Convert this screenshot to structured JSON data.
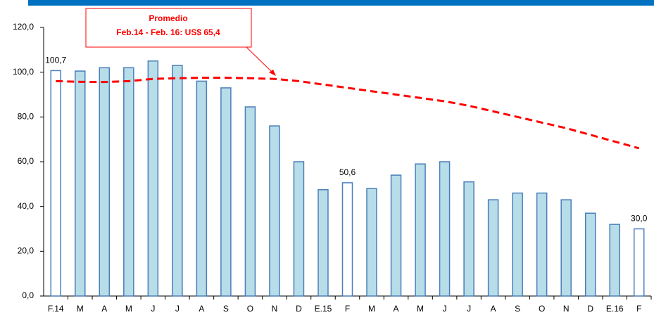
{
  "chart_data": {
    "type": "bar",
    "annotation": {
      "lines": [
        "Promedio",
        "Feb.14 - Feb. 16: US$ 65,4"
      ],
      "color": "#ff0000"
    },
    "categories": [
      "F.14",
      "M",
      "A",
      "M",
      "J",
      "J",
      "A",
      "S",
      "O",
      "N",
      "D",
      "E.15",
      "F",
      "M",
      "A",
      "M",
      "J",
      "J",
      "A",
      "S",
      "O",
      "N",
      "D",
      "E.16",
      "F"
    ],
    "series": [
      {
        "type": "bar",
        "edge_color": "#4a7ebb",
        "values": [
          100.7,
          100.5,
          102,
          102,
          105,
          103,
          96,
          93,
          84.5,
          76,
          60,
          47.5,
          50.6,
          48,
          54,
          59,
          60,
          51,
          43,
          46,
          46,
          43,
          37,
          32,
          30.0
        ],
        "value_labels": [
          "100,7",
          null,
          null,
          null,
          null,
          null,
          null,
          null,
          null,
          null,
          null,
          null,
          "50,6",
          null,
          null,
          null,
          null,
          null,
          null,
          null,
          null,
          null,
          null,
          null,
          "30,0"
        ],
        "colors": [
          "#ffffff",
          "#b7dde8",
          "#b7dde8",
          "#b7dde8",
          "#b7dde8",
          "#b7dde8",
          "#b7dde8",
          "#b7dde8",
          "#b7dde8",
          "#b7dde8",
          "#b7dde8",
          "#b7dde8",
          "#ffffff",
          "#b7dde8",
          "#b7dde8",
          "#b7dde8",
          "#b7dde8",
          "#b7dde8",
          "#b7dde8",
          "#b7dde8",
          "#b7dde8",
          "#b7dde8",
          "#b7dde8",
          "#b7dde8",
          "#ffffff"
        ]
      },
      {
        "type": "line",
        "color": "#ff0000",
        "dashed": true,
        "values": [
          96,
          95.7,
          95.6,
          96,
          97,
          97.3,
          97.5,
          97.5,
          97.3,
          97,
          96,
          94.5,
          93,
          91.5,
          90,
          88.5,
          87,
          85,
          82.5,
          80,
          77.5,
          75,
          72,
          69,
          66
        ]
      }
    ],
    "ylim": [
      0,
      120
    ],
    "yticks": [
      {
        "value": 0,
        "label": "0,0"
      },
      {
        "value": 20,
        "label": "20,0"
      },
      {
        "value": 40,
        "label": "40,0"
      },
      {
        "value": 60,
        "label": "60,0"
      },
      {
        "value": 80,
        "label": "80,0"
      },
      {
        "value": 100,
        "label": "100,0"
      },
      {
        "value": 120,
        "label": "120,0"
      }
    ],
    "grid": false
  }
}
